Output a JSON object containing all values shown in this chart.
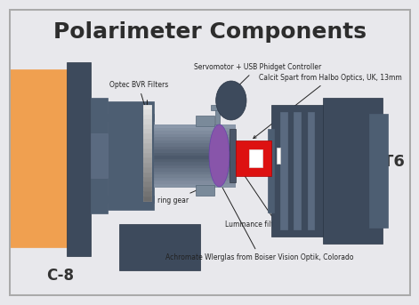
{
  "title": "Polarimeter Components",
  "title_fontsize": 18,
  "title_color": "#2d2d2d",
  "bg_color": "#e8e8ec",
  "diagram_bg": "#d8dae2",
  "orange_color": "#f0a050",
  "dark_blue": "#3d4a5c",
  "medium_blue": "#4d5e72",
  "slate_blue": "#5a6a80",
  "light_slate": "#7a8a9a",
  "red_color": "#dd1111",
  "white_color": "#ffffff",
  "purple_color": "#8855aa",
  "gray_servo": "#6a7a8a",
  "c8_label": "C-8",
  "st6_label": "ST6"
}
